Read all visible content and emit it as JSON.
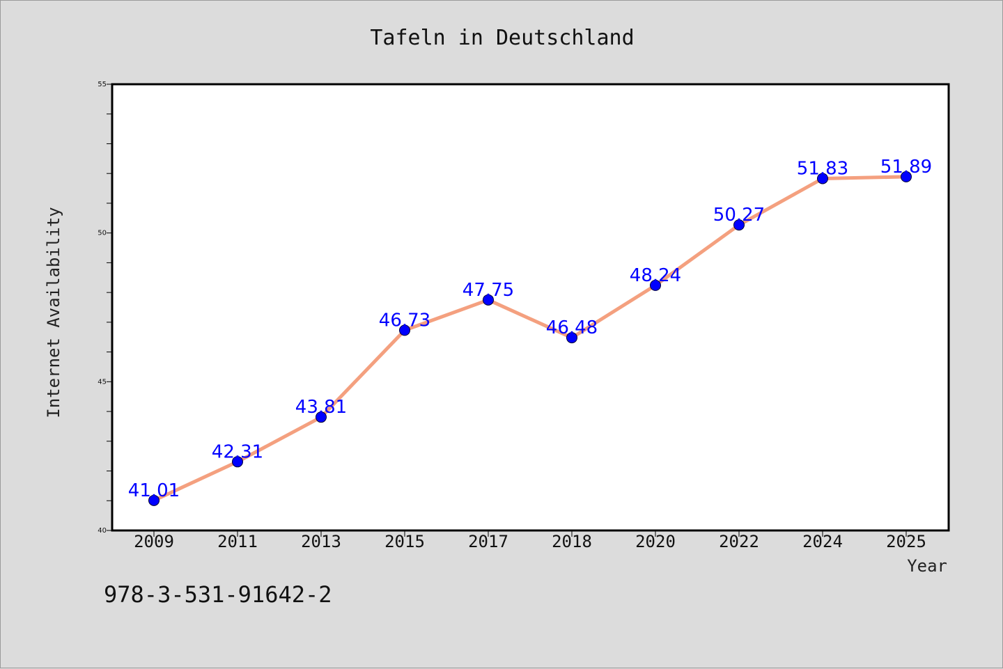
{
  "colors": {
    "background": "#dcdcdc",
    "plot_background": "#ffffff",
    "line": "#f4a07f",
    "marker": "#0000ff",
    "data_label": "#0000ff"
  },
  "footer_text": "978-3-531-91642-2",
  "chart_data": {
    "type": "line",
    "title": "Tafeln in Deutschland",
    "xlabel": "Year",
    "ylabel": "Internet Availability",
    "categories": [
      "2009",
      "2011",
      "2013",
      "2015",
      "2017",
      "2018",
      "2020",
      "2022",
      "2024",
      "2025"
    ],
    "series": [
      {
        "values": [
          41.01,
          42.31,
          43.81,
          46.73,
          47.75,
          46.48,
          48.24,
          50.27,
          51.83,
          51.89
        ],
        "labels": [
          "41.01",
          "42.31",
          "43.81",
          "46.73",
          "47.75",
          "46.48",
          "48.24",
          "50.27",
          "51.83",
          "51.89"
        ]
      }
    ],
    "ylim": [
      40,
      55
    ],
    "yticks_major": [
      40,
      45,
      50,
      55
    ],
    "yticks_minor_step": 1,
    "grid": false,
    "legend": "none"
  }
}
